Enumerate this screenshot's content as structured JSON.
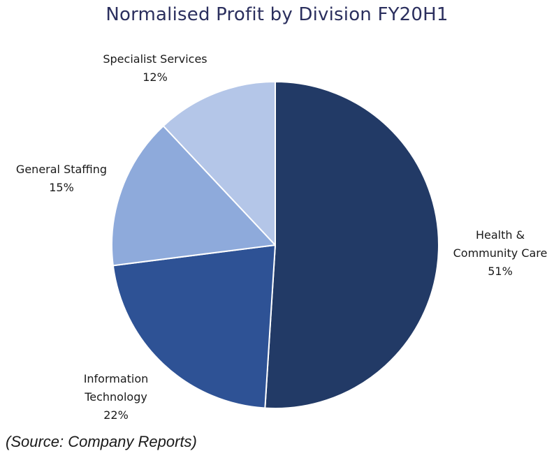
{
  "chart_data": {
    "type": "pie",
    "title": "Normalised Profit by Division FY20H1",
    "categories": [
      "Health & Community Care",
      "Information Technology",
      "General Staffing",
      "Specialist Services"
    ],
    "label_lines": [
      [
        "Health &",
        "Community Care"
      ],
      [
        "Information",
        "Technology"
      ],
      [
        "General Staffing"
      ],
      [
        "Specialist Services"
      ]
    ],
    "values": [
      51,
      22,
      15,
      12
    ],
    "value_labels": [
      "51%",
      "22%",
      "15%",
      "12%"
    ],
    "colors": [
      "#223a66",
      "#2e5295",
      "#8eaadb",
      "#b4c6e8"
    ],
    "slice_border": "#ffffff",
    "start": "12 o'clock",
    "direction": "clockwise",
    "legend": "none"
  },
  "source": "(Source: Company Reports)"
}
